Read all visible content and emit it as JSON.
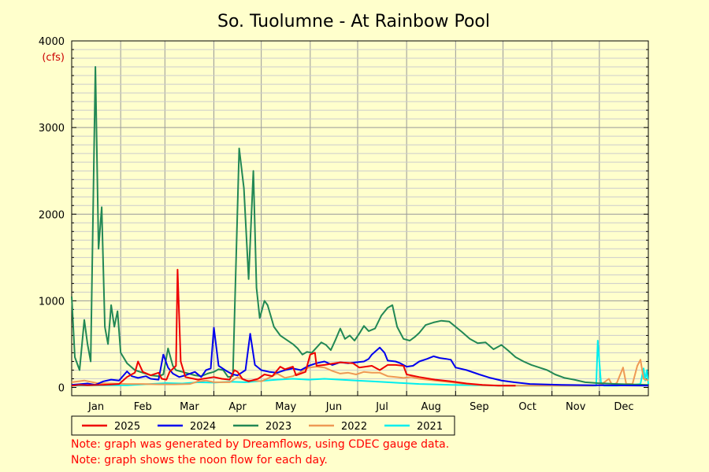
{
  "chart_data": {
    "type": "line",
    "title": "So. Tuolumne - At Rainbow Pool",
    "ylabel": "(cfs)",
    "ylim": [
      0,
      4000
    ],
    "yticks": [
      0,
      1000,
      2000,
      3000,
      4000
    ],
    "xlim": [
      0,
      365
    ],
    "months": [
      "Jan",
      "Feb",
      "Mar",
      "Apr",
      "May",
      "Jun",
      "Jul",
      "Aug",
      "Sep",
      "Oct",
      "Nov",
      "Dec"
    ],
    "grid": true,
    "legend_position": "bottom",
    "series": [
      {
        "name": "2025",
        "color": "#ee0000",
        "points": [
          [
            0,
            20
          ],
          [
            5,
            30
          ],
          [
            10,
            25
          ],
          [
            20,
            30
          ],
          [
            30,
            40
          ],
          [
            35,
            120
          ],
          [
            40,
            170
          ],
          [
            42,
            300
          ],
          [
            45,
            180
          ],
          [
            50,
            140
          ],
          [
            55,
            170
          ],
          [
            57,
            100
          ],
          [
            60,
            90
          ],
          [
            62,
            180
          ],
          [
            66,
            250
          ],
          [
            67,
            1360
          ],
          [
            69,
            300
          ],
          [
            72,
            120
          ],
          [
            80,
            90
          ],
          [
            90,
            120
          ],
          [
            95,
            100
          ],
          [
            100,
            90
          ],
          [
            103,
            200
          ],
          [
            105,
            180
          ],
          [
            108,
            100
          ],
          [
            112,
            70
          ],
          [
            118,
            100
          ],
          [
            122,
            150
          ],
          [
            127,
            130
          ],
          [
            132,
            240
          ],
          [
            135,
            210
          ],
          [
            140,
            240
          ],
          [
            142,
            140
          ],
          [
            148,
            180
          ],
          [
            151,
            380
          ],
          [
            154,
            400
          ],
          [
            155,
            250
          ],
          [
            160,
            260
          ],
          [
            170,
            290
          ],
          [
            178,
            280
          ],
          [
            182,
            230
          ],
          [
            190,
            250
          ],
          [
            195,
            200
          ],
          [
            200,
            260
          ],
          [
            205,
            260
          ],
          [
            210,
            250
          ],
          [
            212,
            150
          ],
          [
            220,
            120
          ],
          [
            230,
            90
          ],
          [
            240,
            70
          ],
          [
            250,
            45
          ],
          [
            260,
            30
          ],
          [
            270,
            20
          ],
          [
            281,
            20
          ]
        ]
      },
      {
        "name": "2024",
        "color": "#0000ee",
        "points": [
          [
            0,
            30
          ],
          [
            10,
            45
          ],
          [
            15,
            30
          ],
          [
            20,
            70
          ],
          [
            25,
            90
          ],
          [
            30,
            80
          ],
          [
            35,
            185
          ],
          [
            38,
            130
          ],
          [
            42,
            110
          ],
          [
            47,
            130
          ],
          [
            50,
            100
          ],
          [
            55,
            90
          ],
          [
            58,
            380
          ],
          [
            61,
            230
          ],
          [
            64,
            160
          ],
          [
            68,
            120
          ],
          [
            72,
            140
          ],
          [
            78,
            180
          ],
          [
            82,
            120
          ],
          [
            85,
            200
          ],
          [
            88,
            220
          ],
          [
            90,
            690
          ],
          [
            93,
            250
          ],
          [
            98,
            190
          ],
          [
            102,
            150
          ],
          [
            105,
            140
          ],
          [
            110,
            200
          ],
          [
            113,
            620
          ],
          [
            116,
            260
          ],
          [
            120,
            200
          ],
          [
            125,
            180
          ],
          [
            130,
            170
          ],
          [
            135,
            200
          ],
          [
            140,
            220
          ],
          [
            145,
            200
          ],
          [
            150,
            250
          ],
          [
            155,
            280
          ],
          [
            160,
            300
          ],
          [
            165,
            260
          ],
          [
            170,
            290
          ],
          [
            175,
            280
          ],
          [
            180,
            290
          ],
          [
            185,
            300
          ],
          [
            188,
            330
          ],
          [
            190,
            380
          ],
          [
            195,
            460
          ],
          [
            198,
            400
          ],
          [
            200,
            310
          ],
          [
            205,
            300
          ],
          [
            208,
            280
          ],
          [
            212,
            240
          ],
          [
            216,
            250
          ],
          [
            220,
            300
          ],
          [
            225,
            330
          ],
          [
            229,
            360
          ],
          [
            233,
            340
          ],
          [
            237,
            330
          ],
          [
            240,
            320
          ],
          [
            243,
            230
          ],
          [
            250,
            200
          ],
          [
            258,
            150
          ],
          [
            265,
            110
          ],
          [
            272,
            80
          ],
          [
            280,
            60
          ],
          [
            290,
            40
          ],
          [
            310,
            30
          ],
          [
            330,
            25
          ],
          [
            365,
            20
          ]
        ]
      },
      {
        "name": "2023",
        "color": "#228855",
        "points": [
          [
            0,
            1050
          ],
          [
            2,
            350
          ],
          [
            5,
            200
          ],
          [
            8,
            780
          ],
          [
            10,
            500
          ],
          [
            12,
            300
          ],
          [
            15,
            3700
          ],
          [
            17,
            1600
          ],
          [
            19,
            2080
          ],
          [
            21,
            700
          ],
          [
            23,
            500
          ],
          [
            25,
            950
          ],
          [
            27,
            700
          ],
          [
            29,
            880
          ],
          [
            31,
            400
          ],
          [
            35,
            280
          ],
          [
            40,
            200
          ],
          [
            45,
            170
          ],
          [
            50,
            140
          ],
          [
            55,
            130
          ],
          [
            58,
            150
          ],
          [
            61,
            450
          ],
          [
            64,
            250
          ],
          [
            66,
            200
          ],
          [
            70,
            180
          ],
          [
            74,
            160
          ],
          [
            78,
            140
          ],
          [
            82,
            130
          ],
          [
            86,
            160
          ],
          [
            90,
            180
          ],
          [
            93,
            210
          ],
          [
            96,
            200
          ],
          [
            99,
            120
          ],
          [
            102,
            130
          ],
          [
            106,
            2760
          ],
          [
            109,
            2300
          ],
          [
            112,
            1250
          ],
          [
            115,
            2500
          ],
          [
            117,
            1150
          ],
          [
            119,
            800
          ],
          [
            122,
            1000
          ],
          [
            124,
            950
          ],
          [
            128,
            700
          ],
          [
            132,
            600
          ],
          [
            136,
            550
          ],
          [
            140,
            500
          ],
          [
            143,
            450
          ],
          [
            146,
            380
          ],
          [
            149,
            410
          ],
          [
            152,
            400
          ],
          [
            155,
            460
          ],
          [
            158,
            520
          ],
          [
            161,
            490
          ],
          [
            164,
            430
          ],
          [
            167,
            550
          ],
          [
            170,
            680
          ],
          [
            173,
            560
          ],
          [
            176,
            600
          ],
          [
            179,
            540
          ],
          [
            182,
            620
          ],
          [
            185,
            710
          ],
          [
            188,
            650
          ],
          [
            192,
            680
          ],
          [
            196,
            830
          ],
          [
            200,
            920
          ],
          [
            203,
            950
          ],
          [
            206,
            700
          ],
          [
            210,
            560
          ],
          [
            214,
            540
          ],
          [
            217,
            580
          ],
          [
            220,
            630
          ],
          [
            224,
            720
          ],
          [
            229,
            750
          ],
          [
            234,
            770
          ],
          [
            239,
            760
          ],
          [
            243,
            700
          ],
          [
            247,
            640
          ],
          [
            252,
            560
          ],
          [
            257,
            510
          ],
          [
            262,
            520
          ],
          [
            267,
            440
          ],
          [
            272,
            490
          ],
          [
            276,
            430
          ],
          [
            281,
            350
          ],
          [
            286,
            300
          ],
          [
            291,
            260
          ],
          [
            296,
            230
          ],
          [
            301,
            200
          ],
          [
            306,
            150
          ],
          [
            312,
            110
          ],
          [
            318,
            90
          ],
          [
            325,
            60
          ],
          [
            333,
            50
          ],
          [
            345,
            40
          ],
          [
            365,
            30
          ]
        ]
      },
      {
        "name": "2022",
        "color": "#ee9955",
        "points": [
          [
            0,
            60
          ],
          [
            8,
            80
          ],
          [
            16,
            50
          ],
          [
            25,
            45
          ],
          [
            35,
            40
          ],
          [
            45,
            40
          ],
          [
            55,
            35
          ],
          [
            65,
            35
          ],
          [
            75,
            40
          ],
          [
            80,
            70
          ],
          [
            85,
            80
          ],
          [
            90,
            60
          ],
          [
            95,
            60
          ],
          [
            100,
            60
          ],
          [
            105,
            120
          ],
          [
            110,
            80
          ],
          [
            116,
            80
          ],
          [
            120,
            70
          ],
          [
            126,
            120
          ],
          [
            130,
            160
          ],
          [
            135,
            110
          ],
          [
            140,
            130
          ],
          [
            145,
            180
          ],
          [
            150,
            230
          ],
          [
            155,
            240
          ],
          [
            160,
            230
          ],
          [
            165,
            190
          ],
          [
            170,
            160
          ],
          [
            175,
            170
          ],
          [
            180,
            150
          ],
          [
            185,
            180
          ],
          [
            190,
            170
          ],
          [
            195,
            170
          ],
          [
            200,
            130
          ],
          [
            205,
            120
          ],
          [
            210,
            110
          ],
          [
            215,
            120
          ],
          [
            220,
            100
          ],
          [
            230,
            80
          ],
          [
            240,
            60
          ],
          [
            250,
            40
          ],
          [
            260,
            25
          ],
          [
            280,
            20
          ],
          [
            300,
            20
          ],
          [
            330,
            20
          ],
          [
            335,
            30
          ],
          [
            340,
            100
          ],
          [
            342,
            30
          ],
          [
            345,
            50
          ],
          [
            349,
            230
          ],
          [
            351,
            40
          ],
          [
            355,
            40
          ],
          [
            358,
            250
          ],
          [
            360,
            320
          ],
          [
            362,
            100
          ],
          [
            365,
            80
          ]
        ]
      },
      {
        "name": "2021",
        "color": "#00eeee",
        "points": [
          [
            0,
            20
          ],
          [
            20,
            25
          ],
          [
            35,
            25
          ],
          [
            50,
            40
          ],
          [
            60,
            50
          ],
          [
            70,
            45
          ],
          [
            80,
            60
          ],
          [
            90,
            55
          ],
          [
            100,
            65
          ],
          [
            110,
            60
          ],
          [
            120,
            75
          ],
          [
            130,
            90
          ],
          [
            140,
            100
          ],
          [
            150,
            90
          ],
          [
            160,
            100
          ],
          [
            170,
            90
          ],
          [
            180,
            80
          ],
          [
            190,
            70
          ],
          [
            200,
            60
          ],
          [
            210,
            50
          ],
          [
            220,
            40
          ],
          [
            230,
            35
          ],
          [
            240,
            30
          ],
          [
            255,
            25
          ],
          [
            270,
            20
          ],
          [
            300,
            20
          ],
          [
            320,
            20
          ],
          [
            332,
            20
          ],
          [
            333,
            540
          ],
          [
            335,
            60
          ],
          [
            337,
            20
          ],
          [
            345,
            20
          ],
          [
            355,
            30
          ],
          [
            360,
            40
          ],
          [
            362,
            220
          ],
          [
            363,
            80
          ],
          [
            364,
            200
          ],
          [
            365,
            40
          ]
        ]
      }
    ]
  },
  "notes": {
    "line1": "Note: graph was generated by Dreamflows, using CDEC gauge data.",
    "line2": "Note: graph shows the noon flow for each day."
  }
}
